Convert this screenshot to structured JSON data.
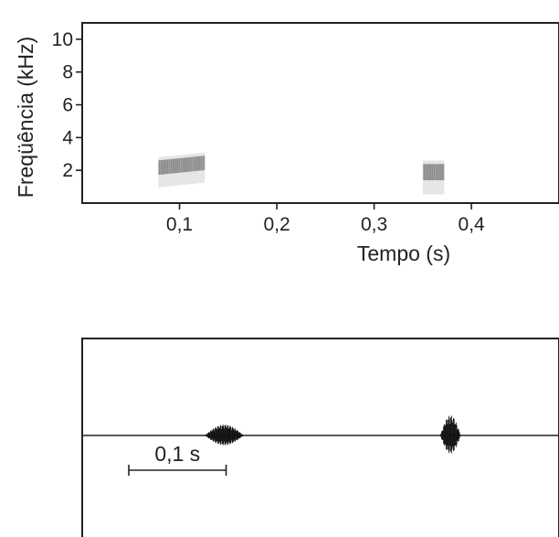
{
  "chart_data": [
    {
      "type": "spectrogram",
      "xlabel": "Tempo (s)",
      "ylabel": "Freqüência (kHz)",
      "x_ticks": [
        {
          "value": 0.1,
          "label": "0,1"
        },
        {
          "value": 0.2,
          "label": "0,2"
        },
        {
          "value": 0.3,
          "label": "0,3"
        },
        {
          "value": 0.4,
          "label": "0,4"
        }
      ],
      "y_ticks": [
        {
          "value": 2,
          "label": "2"
        },
        {
          "value": 4,
          "label": "4"
        },
        {
          "value": 6,
          "label": "6"
        },
        {
          "value": 8,
          "label": "8"
        },
        {
          "value": 10,
          "label": "10"
        }
      ],
      "xlim": [
        0,
        0.49
      ],
      "ylim": [
        0,
        11
      ],
      "notes": [
        {
          "t_start": 0.078,
          "t_end": 0.126,
          "f_low": 1.2,
          "f_high": 2.8
        },
        {
          "t_start": 0.35,
          "t_end": 0.372,
          "f_low": 0.8,
          "f_high": 2.6
        }
      ]
    },
    {
      "type": "oscillogram",
      "xlim": [
        0,
        0.49
      ],
      "bursts": [
        {
          "t_start": 0.126,
          "t_end": 0.166
        },
        {
          "t_start": 0.368,
          "t_end": 0.389
        }
      ],
      "scale_bar": {
        "duration_s": 0.1,
        "label": "0,1 s"
      }
    }
  ]
}
